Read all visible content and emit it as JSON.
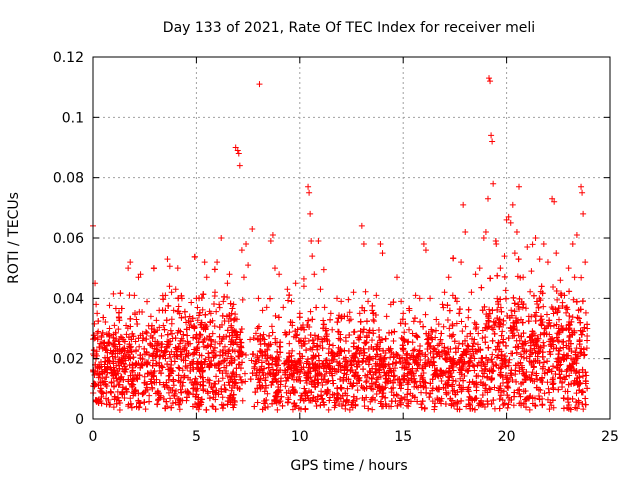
{
  "chart_data": {
    "type": "scatter",
    "title": "Day 133 of 2021, Rate Of TEC Index for receiver meli",
    "xlabel": "GPS time / hours",
    "ylabel": "ROTI / TECUs",
    "xlim": [
      0,
      25
    ],
    "ylim": [
      0,
      0.12
    ],
    "xticks": [
      0,
      5,
      10,
      15,
      20,
      25
    ],
    "xtick_labels": [
      "0",
      "5",
      "10",
      "15",
      "20",
      "25"
    ],
    "yticks": [
      0,
      0.02,
      0.04,
      0.06,
      0.08,
      0.1,
      0.12
    ],
    "ytick_labels": [
      "0",
      "0.02",
      "0.04",
      "0.06",
      "0.08",
      "0.1",
      "0.12"
    ],
    "grid": true,
    "marker": "plus",
    "color": "#ff0000",
    "series": [
      {
        "name": "ROTI",
        "points": [
          [
            0.0,
            0.064
          ],
          [
            0.05,
            0.021
          ],
          [
            0.1,
            0.045
          ],
          [
            0.15,
            0.038
          ],
          [
            0.2,
            0.035
          ],
          [
            0.25,
            0.029
          ],
          [
            0.3,
            0.018
          ],
          [
            0.4,
            0.025
          ],
          [
            0.5,
            0.012
          ],
          [
            0.6,
            0.019
          ],
          [
            0.7,
            0.022
          ],
          [
            0.8,
            0.03
          ],
          [
            0.9,
            0.015
          ],
          [
            1.0,
            0.028
          ],
          [
            1.1,
            0.024
          ],
          [
            1.2,
            0.009
          ],
          [
            1.3,
            0.003
          ],
          [
            1.4,
            0.027
          ],
          [
            1.5,
            0.02
          ],
          [
            1.6,
            0.031
          ],
          [
            1.7,
            0.05
          ],
          [
            1.8,
            0.052
          ],
          [
            1.9,
            0.018
          ],
          [
            2.0,
            0.041
          ],
          [
            2.1,
            0.033
          ],
          [
            2.2,
            0.047
          ],
          [
            2.3,
            0.048
          ],
          [
            2.4,
            0.026
          ],
          [
            2.5,
            0.014
          ],
          [
            2.6,
            0.022
          ],
          [
            2.8,
            0.034
          ],
          [
            3.0,
            0.029
          ],
          [
            3.2,
            0.036
          ],
          [
            3.4,
            0.031
          ],
          [
            3.5,
            0.041
          ],
          [
            3.6,
            0.053
          ],
          [
            3.7,
            0.044
          ],
          [
            3.8,
            0.042
          ],
          [
            3.9,
            0.036
          ],
          [
            4.0,
            0.043
          ],
          [
            4.1,
            0.05
          ],
          [
            4.3,
            0.04
          ],
          [
            4.5,
            0.032
          ],
          [
            4.7,
            0.025
          ],
          [
            4.9,
            0.03
          ],
          [
            5.0,
            0.04
          ],
          [
            5.2,
            0.028
          ],
          [
            5.4,
            0.052
          ],
          [
            5.5,
            0.047
          ],
          [
            5.7,
            0.035
          ],
          [
            5.9,
            0.042
          ],
          [
            6.0,
            0.052
          ],
          [
            6.1,
            0.038
          ],
          [
            6.2,
            0.06
          ],
          [
            6.3,
            0.039
          ],
          [
            6.5,
            0.045
          ],
          [
            6.6,
            0.048
          ],
          [
            6.7,
            0.035
          ],
          [
            6.8,
            0.038
          ],
          [
            6.9,
            0.09
          ],
          [
            7.0,
            0.089
          ],
          [
            7.05,
            0.088
          ],
          [
            7.1,
            0.084
          ],
          [
            7.2,
            0.056
          ],
          [
            7.3,
            0.047
          ],
          [
            7.4,
            0.058
          ],
          [
            7.5,
            0.051
          ],
          [
            7.7,
            0.063
          ],
          [
            8.0,
            0.04
          ],
          [
            8.05,
            0.111
          ],
          [
            8.2,
            0.036
          ],
          [
            8.4,
            0.037
          ],
          [
            8.6,
            0.059
          ],
          [
            8.7,
            0.061
          ],
          [
            8.8,
            0.05
          ],
          [
            9.0,
            0.048
          ],
          [
            9.2,
            0.037
          ],
          [
            9.4,
            0.043
          ],
          [
            9.6,
            0.039
          ],
          [
            9.8,
            0.045
          ],
          [
            10.0,
            0.035
          ],
          [
            10.2,
            0.044
          ],
          [
            10.4,
            0.077
          ],
          [
            10.45,
            0.075
          ],
          [
            10.5,
            0.068
          ],
          [
            10.55,
            0.059
          ],
          [
            10.6,
            0.054
          ],
          [
            10.7,
            0.048
          ],
          [
            10.9,
            0.059
          ],
          [
            11.0,
            0.043
          ],
          [
            11.2,
            0.037
          ],
          [
            11.5,
            0.035
          ],
          [
            11.8,
            0.04
          ],
          [
            12.0,
            0.039
          ],
          [
            12.3,
            0.034
          ],
          [
            12.6,
            0.042
          ],
          [
            12.9,
            0.035
          ],
          [
            13.0,
            0.064
          ],
          [
            13.1,
            0.058
          ],
          [
            13.3,
            0.039
          ],
          [
            13.5,
            0.036
          ],
          [
            13.7,
            0.041
          ],
          [
            13.9,
            0.058
          ],
          [
            14.0,
            0.055
          ],
          [
            14.2,
            0.034
          ],
          [
            14.4,
            0.038
          ],
          [
            14.7,
            0.047
          ],
          [
            14.9,
            0.039
          ],
          [
            15.0,
            0.035
          ],
          [
            15.3,
            0.036
          ],
          [
            15.6,
            0.041
          ],
          [
            15.8,
            0.04
          ],
          [
            16.0,
            0.058
          ],
          [
            16.1,
            0.056
          ],
          [
            16.3,
            0.04
          ],
          [
            16.6,
            0.033
          ],
          [
            16.9,
            0.038
          ],
          [
            17.0,
            0.042
          ],
          [
            17.2,
            0.047
          ],
          [
            17.4,
            0.041
          ],
          [
            17.6,
            0.039
          ],
          [
            17.8,
            0.052
          ],
          [
            17.9,
            0.071
          ],
          [
            18.0,
            0.062
          ],
          [
            18.3,
            0.042
          ],
          [
            18.5,
            0.048
          ],
          [
            18.7,
            0.05
          ],
          [
            18.9,
            0.06
          ],
          [
            19.0,
            0.062
          ],
          [
            19.1,
            0.073
          ],
          [
            19.15,
            0.113
          ],
          [
            19.2,
            0.112
          ],
          [
            19.25,
            0.094
          ],
          [
            19.3,
            0.092
          ],
          [
            19.35,
            0.078
          ],
          [
            19.5,
            0.058
          ],
          [
            19.7,
            0.05
          ],
          [
            19.9,
            0.054
          ],
          [
            20.0,
            0.066
          ],
          [
            20.1,
            0.067
          ],
          [
            20.2,
            0.065
          ],
          [
            20.3,
            0.071
          ],
          [
            20.4,
            0.055
          ],
          [
            20.5,
            0.062
          ],
          [
            20.6,
            0.077
          ],
          [
            20.8,
            0.047
          ],
          [
            21.0,
            0.057
          ],
          [
            21.2,
            0.049
          ],
          [
            21.4,
            0.06
          ],
          [
            21.6,
            0.053
          ],
          [
            21.8,
            0.058
          ],
          [
            22.0,
            0.052
          ],
          [
            22.2,
            0.073
          ],
          [
            22.3,
            0.072
          ],
          [
            22.4,
            0.055
          ],
          [
            22.6,
            0.046
          ],
          [
            22.8,
            0.041
          ],
          [
            23.0,
            0.05
          ],
          [
            23.2,
            0.058
          ],
          [
            23.4,
            0.061
          ],
          [
            23.6,
            0.077
          ],
          [
            23.65,
            0.075
          ],
          [
            23.7,
            0.068
          ],
          [
            23.8,
            0.052
          ],
          [
            23.9,
            0.03
          ]
        ],
        "dense_band": {
          "x_range": [
            0,
            23.9
          ],
          "low": 0.003,
          "high": 0.03,
          "center": 0.016
        }
      }
    ]
  }
}
